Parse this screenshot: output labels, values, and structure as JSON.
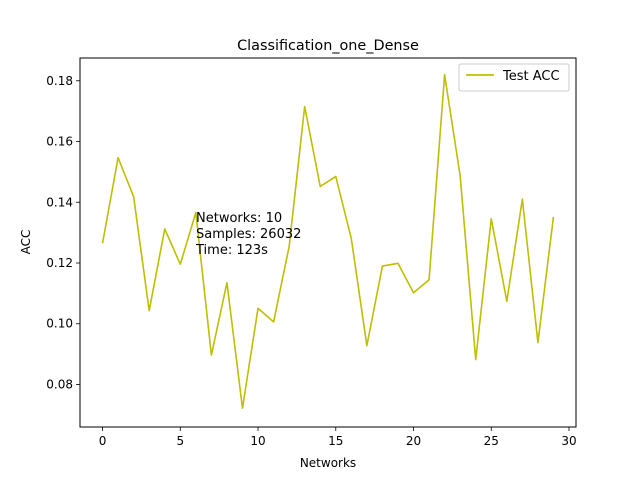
{
  "chart_data": {
    "type": "line",
    "title": "Classification_one_Dense",
    "xlabel": "Networks",
    "ylabel": "ACC",
    "xlim": [
      -1.45,
      30.45
    ],
    "ylim": [
      0.066,
      0.1875
    ],
    "xticks": [
      0,
      5,
      10,
      15,
      20,
      25,
      30
    ],
    "yticks": [
      0.08,
      0.1,
      0.12,
      0.14,
      0.16,
      0.18
    ],
    "ytick_labels": [
      "0.08",
      "0.10",
      "0.12",
      "0.14",
      "0.16",
      "0.18"
    ],
    "grid": false,
    "legend_position": "upper-right",
    "series": [
      {
        "name": "Test ACC",
        "color": "#bfbf00",
        "x": [
          0,
          1,
          2,
          3,
          4,
          5,
          6,
          7,
          8,
          9,
          10,
          11,
          12,
          13,
          14,
          15,
          16,
          17,
          18,
          19,
          20,
          21,
          22,
          23,
          24,
          25,
          26,
          27,
          28,
          29
        ],
        "values": [
          0.1265,
          0.1547,
          0.1418,
          0.1043,
          0.1312,
          0.1196,
          0.1366,
          0.0897,
          0.1135,
          0.0722,
          0.1051,
          0.1006,
          0.1254,
          0.1715,
          0.1452,
          0.1485,
          0.128,
          0.0928,
          0.119,
          0.1199,
          0.1102,
          0.1145,
          0.182,
          0.1487,
          0.0882,
          0.1346,
          0.1074,
          0.141,
          0.0938,
          0.1352
        ]
      }
    ],
    "annotation": {
      "lines": [
        "Networks: 10",
        "Samples: 26032",
        "Time: 123s"
      ]
    }
  }
}
